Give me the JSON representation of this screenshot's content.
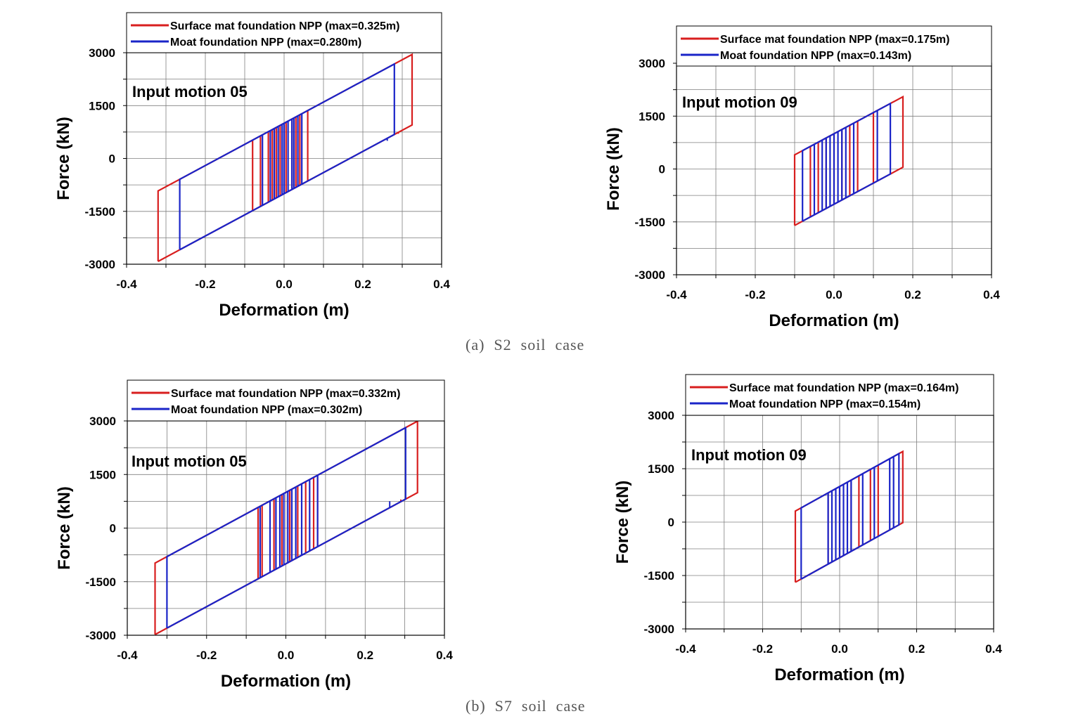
{
  "captions": [
    "(a)  S2  soil  case",
    "(b)  S7  soil  case"
  ],
  "colors": {
    "surface": "#d81e1e",
    "moat": "#1a24c8",
    "grid": "#7f7f7f"
  },
  "chart_data": [
    {
      "type": "line",
      "xlabel": "Deformation (m)",
      "ylabel": "Force (kN)",
      "xlim": [
        -0.4,
        0.4
      ],
      "ylim": [
        -3000,
        3000
      ],
      "xticks": [
        -0.4,
        -0.2,
        0.0,
        0.2,
        0.4
      ],
      "xtick_labels": [
        "-0.4",
        "-0.2",
        "0.0",
        "0.2",
        "0.4"
      ],
      "yticks": [
        -3000,
        -1500,
        0,
        1500,
        3000
      ],
      "ytick_labels": [
        "-3000",
        "-1500",
        "0",
        "1500",
        "3000"
      ],
      "annotation": "Input motion 05",
      "grid": true,
      "legend": "top",
      "series": [
        {
          "name": "Surface mat foundation NPP (max=0.325m)",
          "color_key": "surface",
          "max": 0.325,
          "min": -0.32,
          "k": 6000,
          "h": 1000,
          "inner": [
            -0.08,
            -0.06,
            -0.04,
            -0.03,
            -0.02,
            -0.01,
            0.005,
            0.02,
            0.03,
            0.04,
            0.06
          ],
          "spike": [
            0.29,
            700
          ]
        },
        {
          "name": "Moat foundation NPP (max=0.280m)",
          "color_key": "moat",
          "max": 0.28,
          "min": -0.265,
          "k": 6000,
          "h": 1000,
          "inner": [
            -0.055,
            -0.035,
            -0.025,
            -0.015,
            -0.005,
            0.0,
            0.01,
            0.02,
            0.025,
            0.035,
            0.045
          ],
          "spike": [
            0.262,
            500
          ]
        }
      ]
    },
    {
      "type": "line",
      "xlabel": "Deformation (m)",
      "ylabel": "Force (kN)",
      "xlim": [
        -0.4,
        0.4
      ],
      "ylim": [
        -3000,
        3000
      ],
      "xticks": [
        -0.4,
        -0.2,
        0.0,
        0.2,
        0.4
      ],
      "xtick_labels": [
        "-0.4",
        "-0.2",
        "0.0",
        "0.2",
        "0.4"
      ],
      "yticks": [
        -3000,
        -1500,
        0,
        1500,
        3000
      ],
      "ytick_labels": [
        "-3000",
        "-1500",
        "0",
        "1500",
        "3000"
      ],
      "annotation": "Input motion 09",
      "grid": true,
      "legend": "top",
      "series": [
        {
          "name": "Surface mat foundation NPP (max=0.175m)",
          "color_key": "surface",
          "max": 0.175,
          "min": -0.1,
          "k": 6000,
          "h": 1000,
          "inner": [
            -0.06,
            -0.04,
            -0.02,
            0.0,
            0.02,
            0.04,
            0.06,
            0.1
          ],
          "spike": null
        },
        {
          "name": "Moat foundation NPP (max=0.143m)",
          "color_key": "moat",
          "max": 0.143,
          "min": -0.08,
          "k": 6000,
          "h": 1000,
          "inner": [
            -0.05,
            -0.03,
            -0.02,
            -0.01,
            0.0,
            0.01,
            0.02,
            0.03,
            0.05,
            0.11
          ],
          "spike": null
        }
      ]
    },
    {
      "type": "line",
      "xlabel": "Deformation (m)",
      "ylabel": "Force (kN)",
      "xlim": [
        -0.4,
        0.4
      ],
      "ylim": [
        -3000,
        3000
      ],
      "xticks": [
        -0.4,
        -0.2,
        0.0,
        0.2,
        0.4
      ],
      "xtick_labels": [
        "-0.4",
        "-0.2",
        "0.0",
        "0.2",
        "0.4"
      ],
      "yticks": [
        -3000,
        -1500,
        0,
        1500,
        3000
      ],
      "ytick_labels": [
        "-3000",
        "-1500",
        "0",
        "1500",
        "3000"
      ],
      "annotation": "Input motion 05",
      "grid": true,
      "legend": "top",
      "series": [
        {
          "name": "Surface mat foundation NPP (max=0.332m)",
          "color_key": "surface",
          "max": 0.332,
          "min": -0.33,
          "k": 6000,
          "h": 1000,
          "inner": [
            -0.07,
            -0.06,
            -0.03,
            -0.01,
            0.01,
            0.03,
            0.05,
            0.07,
            0.08
          ],
          "spike": [
            0.29,
            800
          ]
        },
        {
          "name": "Moat foundation NPP (max=0.302m)",
          "color_key": "moat",
          "max": 0.302,
          "min": -0.3,
          "k": 6000,
          "h": 1000,
          "inner": [
            -0.065,
            -0.04,
            -0.025,
            -0.015,
            -0.005,
            0.005,
            0.015,
            0.025,
            0.04,
            0.06,
            0.08
          ],
          "spike": [
            0.262,
            750
          ]
        }
      ]
    },
    {
      "type": "line",
      "xlabel": "Deformation (m)",
      "ylabel": "Force (kN)",
      "xlim": [
        -0.4,
        0.4
      ],
      "ylim": [
        -3000,
        3000
      ],
      "xticks": [
        -0.4,
        -0.2,
        0.0,
        0.2,
        0.4
      ],
      "xtick_labels": [
        "-0.4",
        "-0.2",
        "0.0",
        "0.2",
        "0.4"
      ],
      "yticks": [
        -3000,
        -1500,
        0,
        1500,
        3000
      ],
      "ytick_labels": [
        "-3000",
        "-1500",
        "0",
        "1500",
        "3000"
      ],
      "annotation": "Input motion 09",
      "grid": true,
      "legend": "top",
      "series": [
        {
          "name": "Surface mat foundation NPP (max=0.164m)",
          "color_key": "surface",
          "max": 0.164,
          "min": -0.115,
          "k": 6000,
          "h": 1000,
          "inner": [
            -0.03,
            0.0,
            0.03,
            0.05,
            0.08,
            0.1
          ],
          "spike": null
        },
        {
          "name": "Moat foundation NPP (max=0.154m)",
          "color_key": "moat",
          "max": 0.154,
          "min": -0.1,
          "k": 6000,
          "h": 1000,
          "inner": [
            -0.1,
            -0.03,
            -0.02,
            -0.01,
            0.0,
            0.01,
            0.02,
            0.03,
            0.06,
            0.09,
            0.13,
            0.14
          ],
          "spike": null
        }
      ]
    }
  ]
}
